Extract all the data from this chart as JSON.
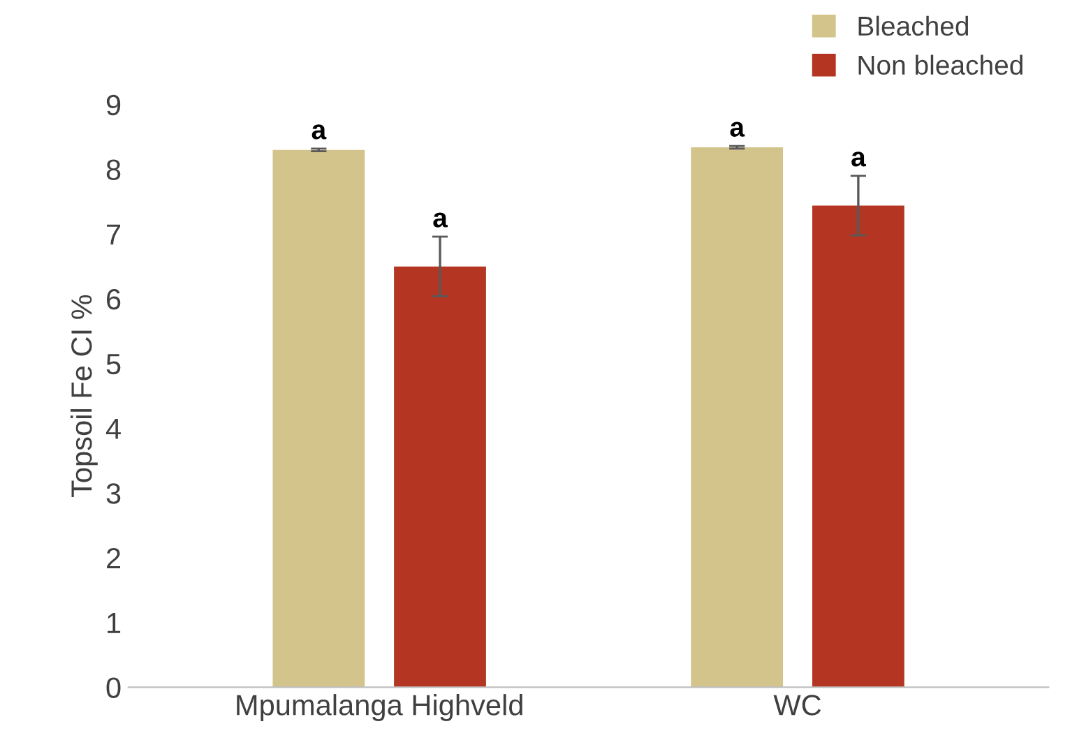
{
  "chart_data": {
    "type": "bar",
    "ylabel": "Topsoil Fe CI %",
    "categories": [
      "Mpumalanga Highveld",
      "WC"
    ],
    "series": [
      {
        "name": "Bleached",
        "color": "#d2c48a",
        "values": [
          8.3,
          8.34
        ],
        "errors": [
          0.02,
          0.02
        ]
      },
      {
        "name": "Non bleached",
        "color": "#b33522",
        "values": [
          6.5,
          7.44
        ],
        "errors": [
          0.46,
          0.46
        ]
      }
    ],
    "ylim": [
      0,
      9
    ],
    "yticks": [
      0,
      1,
      2,
      3,
      4,
      5,
      6,
      7,
      8,
      9
    ],
    "grid": false,
    "legend": "top right",
    "annotations": [
      "a",
      "a",
      "a",
      "a"
    ]
  }
}
